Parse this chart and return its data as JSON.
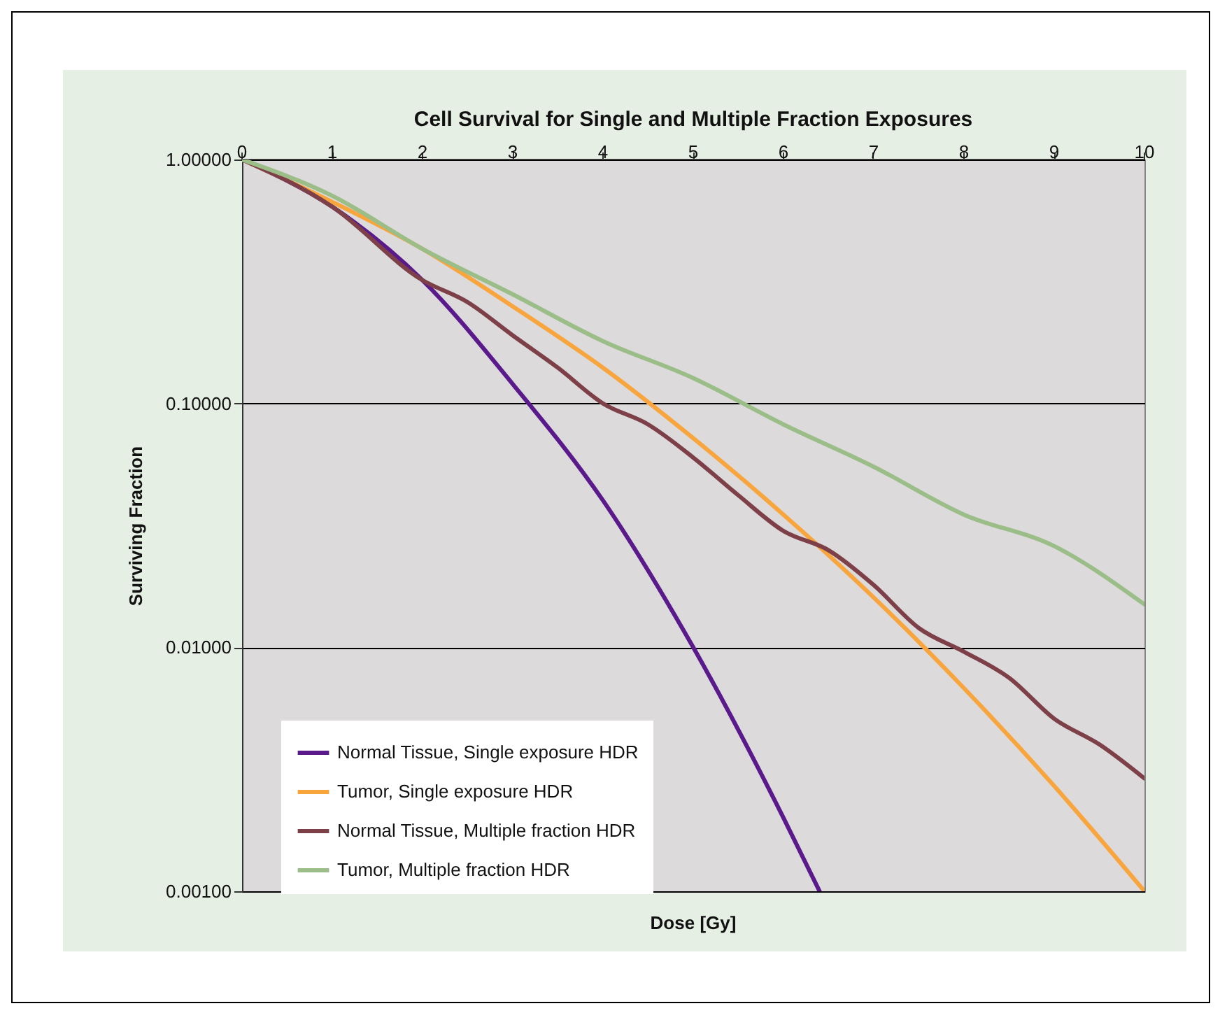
{
  "chart_data": {
    "type": "line",
    "title": "Cell Survival for Single and Multiple Fraction Exposures",
    "xlabel": "Dose [Gy]",
    "ylabel": "Surviving Fraction",
    "x": [
      0,
      1,
      2,
      3,
      4,
      5,
      6,
      7,
      8,
      9,
      10
    ],
    "series": [
      {
        "name": "Normal Tissue, Single exposure HDR",
        "color": "#5b1a8c",
        "x": [
          0,
          1,
          2,
          3,
          4,
          5,
          6,
          6.4
        ],
        "values": [
          1,
          0.64,
          0.32,
          0.12,
          0.04,
          0.01,
          0.002,
          0.001
        ]
      },
      {
        "name": "Tumor, Single exposure HDR",
        "color": "#f9a53e",
        "values": [
          1,
          0.67,
          0.43,
          0.25,
          0.14,
          0.072,
          0.035,
          0.016,
          0.0068,
          0.0027,
          0.001
        ]
      },
      {
        "name": "Normal Tissue, Multiple fraction HDR",
        "color": "#7d4048",
        "x": [
          0,
          1,
          2,
          2.5,
          3,
          3.5,
          4,
          4.5,
          5,
          5.5,
          6,
          6.5,
          7,
          7.5,
          8,
          8.5,
          9,
          9.5,
          10
        ],
        "values": [
          1,
          0.64,
          0.32,
          0.26,
          0.19,
          0.14,
          0.1,
          0.082,
          0.06,
          0.042,
          0.03,
          0.025,
          0.018,
          0.012,
          0.0096,
          0.0075,
          0.0051,
          0.004,
          0.0029
        ]
      },
      {
        "name": "Tumor, Multiple fraction HDR",
        "color": "#9bbd88",
        "values": [
          1,
          0.71,
          0.43,
          0.28,
          0.18,
          0.127,
          0.082,
          0.055,
          0.035,
          0.026,
          0.015
        ]
      }
    ],
    "xlim": [
      0,
      10
    ],
    "xticks": [
      0,
      1,
      2,
      3,
      4,
      5,
      6,
      7,
      8,
      9,
      10
    ],
    "ylim": [
      0.001,
      1
    ],
    "yticks": [
      {
        "value": 1,
        "label": "1.00000"
      },
      {
        "value": 0.1,
        "label": "0.10000"
      },
      {
        "value": 0.01,
        "label": "0.01000"
      },
      {
        "value": 0.001,
        "label": "0.00100"
      }
    ],
    "log": "y",
    "grid": "y",
    "legend": "bottom left"
  }
}
